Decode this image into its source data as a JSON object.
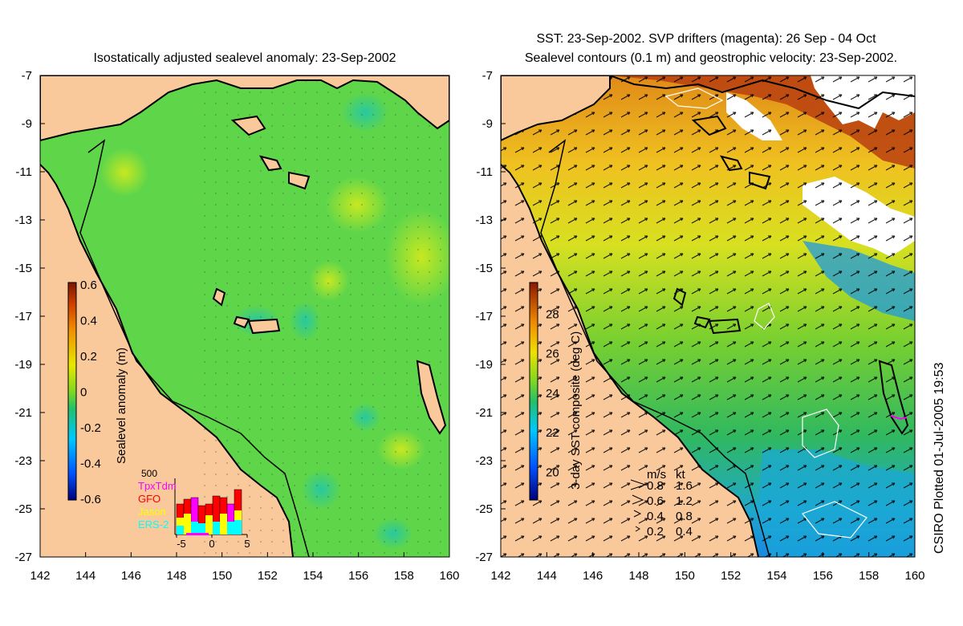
{
  "left_panel": {
    "title": "Isostatically adjusted sealevel anomaly: 23-Sep-2002",
    "colorbar": {
      "label": "Sealevel anomaly (m)",
      "ticks": [
        "0.6",
        "0.4",
        "0.2",
        "0",
        "-0.2",
        "-0.4",
        "-0.6"
      ]
    },
    "inset": {
      "top_value": "500",
      "legend": [
        {
          "name": "TpxTdm",
          "color": "#ff00ff"
        },
        {
          "name": "GFO",
          "color": "#ff0000"
        },
        {
          "name": "Jason",
          "color": "#ffff00"
        },
        {
          "name": "ERS-2",
          "color": "#00ffff"
        }
      ],
      "x_ticks": [
        "-5",
        "0",
        "5"
      ]
    }
  },
  "right_panel": {
    "title_line1": "SST: 23-Sep-2002. SVP drifters (magenta): 26 Sep - 04 Oct",
    "title_line2": "Sealevel contours (0.1 m) and geostrophic velocity: 23-Sep-2002.",
    "colorbar": {
      "label": "3-day SST composite (deg C)",
      "ticks": [
        "28",
        "26",
        "24",
        "22",
        "20"
      ]
    },
    "velocity_key": {
      "headers": [
        "m/s",
        "kt"
      ],
      "rows": [
        {
          "ms": "0.8",
          "kt": "1.6"
        },
        {
          "ms": "0.6",
          "kt": "1.2"
        },
        {
          "ms": "0.4",
          "kt": "0.8"
        },
        {
          "ms": "0.2",
          "kt": "0.4"
        }
      ]
    }
  },
  "axes": {
    "y_ticks": [
      "-7",
      "-9",
      "-11",
      "-13",
      "-15",
      "-17",
      "-19",
      "-21",
      "-23",
      "-25",
      "-27"
    ],
    "x_ticks": [
      "142",
      "144",
      "146",
      "148",
      "150",
      "152",
      "154",
      "156",
      "158",
      "160"
    ]
  },
  "credit": "CSIRO Plotted 01-Jul-2005 19:53",
  "colors": {
    "land": "#f9c89b",
    "sea_left": "#5fd64a",
    "sea_right": "#4fc24a"
  }
}
